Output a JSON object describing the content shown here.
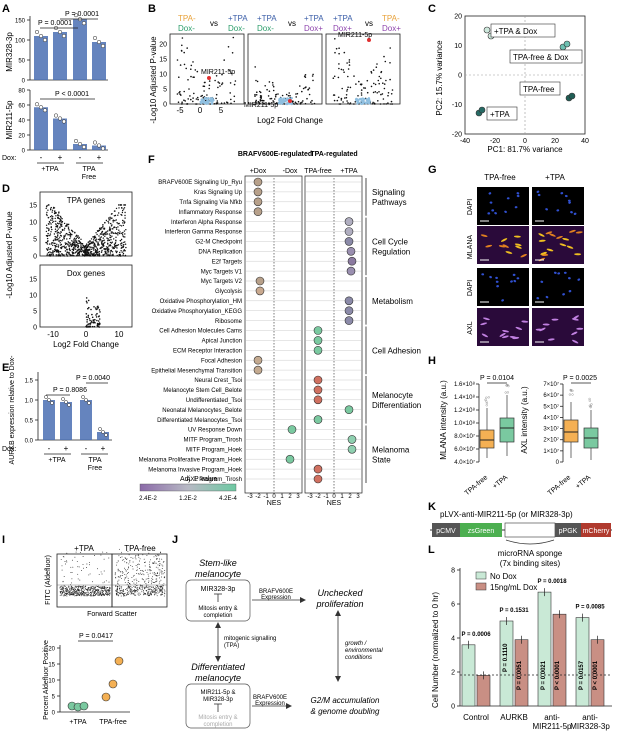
{
  "panels": {
    "A": {
      "label": "A",
      "top": {
        "ylabel": "MIR328-3p",
        "yticks": [
          "0",
          "50",
          "100",
          "150"
        ],
        "p1": "P = 0.0001",
        "p2": "P = 0.0001",
        "bars": [
          110,
          120,
          152,
          95
        ],
        "colors": [
          "#4a6fb3",
          "#4a6fb3",
          "#4a6fb3",
          "#4a6fb3"
        ]
      },
      "bottom": {
        "ylabel": "MIR211-5p",
        "yticks": [
          "0",
          "20",
          "40",
          "60",
          "80"
        ],
        "p1": "P < 0.0001",
        "bars": [
          57,
          42,
          8,
          6
        ],
        "colors": [
          "#4a6fb3",
          "#4a6fb3",
          "#4a6fb3",
          "#4a6fb3"
        ]
      },
      "dox_label": "Dox:",
      "dox_signs": [
        "-",
        "+",
        "-",
        "+"
      ],
      "groups": [
        "+TPA",
        "TPA",
        "Free"
      ]
    },
    "B": {
      "label": "B",
      "titles": [
        {
          "a": "TPA-",
          "a2": "Dox-",
          "vs": "vs",
          "b": "+TPA",
          "b2": "Dox-"
        },
        {
          "a": "+TPA",
          "a2": "Dox-",
          "vs": "vs",
          "b": "+TPA",
          "b2": "Dox+"
        },
        {
          "a": "+TPA",
          "a2": "Dox+",
          "vs": "vs",
          "b": "TPA-",
          "b2": "Dox+"
        }
      ],
      "ylabel": "-Log10 Adjusted P-value",
      "xlabel": "Log2 Fold Change",
      "yticks": [
        "0",
        "5",
        "10",
        "15",
        "20"
      ],
      "xticks": [
        "-5",
        "0",
        "5"
      ],
      "annot": [
        "MIR211-5p",
        "MIR211-5p",
        "MIR211-5p"
      ]
    },
    "C": {
      "label": "C",
      "xlabel": "PC1: 81.7% variance",
      "ylabel": "PC2: 15.7% variance",
      "xticks": [
        "-40",
        "-20",
        "0",
        "20",
        "40"
      ],
      "yticks": [
        "-20",
        "-10",
        "0",
        "10",
        "20"
      ],
      "groups": [
        "+TPA & Dox",
        "TPA-free & Dox",
        "TPA-free",
        "+TPA"
      ]
    },
    "D": {
      "label": "D",
      "top_title": "TPA genes",
      "bottom_title": "Dox genes",
      "ylabel": "-Log10 Adjusted P-value",
      "xlabel": "Log2 Fold Change",
      "xticks": [
        "-10",
        "0",
        "10"
      ],
      "yticks_top": [
        "0",
        "5",
        "10",
        "15"
      ],
      "yticks_bottom": [
        "0",
        "5",
        "10",
        "15"
      ]
    },
    "E": {
      "label": "E",
      "ylabel": "AURKB expression relative to Dox-",
      "yticks": [
        "0.0",
        "0.5",
        "1.0",
        "1.5"
      ],
      "p1": "P = 0.8086",
      "p2": "P = 0.0040",
      "bars": [
        1.0,
        0.95,
        1.0,
        0.2
      ],
      "dox_label": "Dox:",
      "dox_signs": [
        "-",
        "+",
        "-",
        "+"
      ],
      "groups": [
        "+TPA",
        "TPA",
        "Free"
      ]
    },
    "F": {
      "label": "F",
      "col1_title": "BRAFV600E-regulated",
      "col1_sub": [
        "+Dox",
        "-Dox"
      ],
      "col2_title": "TPA-regulated",
      "col2_sub": [
        "TPA-free",
        "+TPA"
      ],
      "pathways": [
        "BRAFV600E Signaling Up_Ryu",
        "Kras Signaling Up",
        "Tnfa Signaling Via Nfkb",
        "Inflammatory Response",
        "Interferon Alpha Response",
        "Interferon Gamma Response",
        "G2-M Checkpoint",
        "DNA Replication",
        "E2f Targets",
        "Myc Targets V1",
        "Myc Targets V2",
        "Glycolysis",
        "Oxidative Phosphorylation_HM",
        "Oxidative Phosphorylation_KEGG",
        "Ribosome",
        "Cell Adhesion Molecules Cams",
        "Apical Junction",
        "ECM Receptor Interaction",
        "Focal Adhesion",
        "Epithelial Mesenchymal Transition",
        "Neural Crest_Tsoi",
        "Melanocyte Stem Cell_Belote",
        "Undifferentiated_Tsoi",
        "Neonatal Melanocytes_Belote",
        "Differentiated Melanocytes_Tsoi",
        "UV Response Down",
        "MITF Program_Tirosh",
        "MITF Program_Hoek",
        "Melanoma Proliferative Program_Hoek",
        "Melanoma Invasive Program_Hoek",
        "AXL Program_Tirosh"
      ],
      "categories": [
        "Signaling Pathways",
        "Cell Cycle Regulation",
        "Metabolism",
        "Cell Adhesion",
        "Melanocyte Differentiation",
        "Melanoma State"
      ],
      "nes_ticks": [
        "-3",
        "-2",
        "-1",
        "0",
        "1",
        "2",
        "3"
      ],
      "nes_label": "NES",
      "legend_title": "Adj. P value",
      "legend_ticks": [
        "2.4E-2",
        "1.2E-2",
        "4.2E-4"
      ]
    },
    "G": {
      "label": "G",
      "cols": [
        "TPA-free",
        "+TPA"
      ],
      "rows": [
        "DAPI",
        "MLANA",
        "DAPI",
        "AXL"
      ]
    },
    "H": {
      "label": "H",
      "left_ylabel": "MLANA intensity (a.u.)",
      "right_ylabel": "AXL intensity (a.u.)",
      "left_p": "P = 0.0104",
      "right_p": "P = 0.0025",
      "left_yticks": [
        "4.0×10⁷",
        "6.0×10⁷",
        "8.0×10⁷",
        "1.0×10⁸",
        "1.2×10⁸",
        "1.4×10⁸",
        "1.6×10⁸"
      ],
      "right_yticks": [
        "0",
        "1×10⁷",
        "2×10⁷",
        "3×10⁷",
        "4×10⁷",
        "5×10⁷",
        "6×10⁷",
        "7×10⁷"
      ],
      "xlabels": [
        "TPA-free",
        "+TPA"
      ]
    },
    "I": {
      "label": "I",
      "cols": [
        "+TPA",
        "TPA-free"
      ],
      "ylabel_flow": "FITC (Aldefluor)",
      "xlabel_flow": "Forward Scatter",
      "p": "P = 0.0417",
      "ylabel_dot": "Percent Aldefluor Positive",
      "yticks_dot": [
        "0",
        "5",
        "10",
        "15",
        "20"
      ],
      "xlabels_dot": [
        "+TPA",
        "TPA-free"
      ]
    },
    "J": {
      "label": "J",
      "stem_title": "Stem-like melanocyte",
      "box1": [
        "MIR328-3p",
        "Mitosis entry & completion"
      ],
      "braf1": "BRAFV600E Expression",
      "unchecked": "Unchecked proliferation",
      "mitogenic": "mitogenic signalling (TPA)",
      "growth": "growth / environmental conditions",
      "diff_title": "Differentiated melanocyte",
      "box2": [
        "MIR211-5p & MIR328-3p",
        "Mitosis entry & completion"
      ],
      "braf2": "BRAFV600E Expression",
      "g2m": "G2/M accumulation & genome doubling"
    },
    "K": {
      "label": "K",
      "title": "pLVX-anti-MIR211-5p (or MIR328-3p)",
      "parts": [
        "pCMV",
        "zsGreen",
        "pPGK",
        "mCherry"
      ],
      "sponge": "microRNA sponge",
      "sponge2": "(7x binding sites)"
    },
    "L": {
      "label": "L",
      "ylabel": "Cell Number (normalized to 0 hr)",
      "yticks": [
        "0",
        "2",
        "4",
        "6",
        "8"
      ],
      "legend": [
        "No Dox",
        "15ng/mL Dox"
      ],
      "colors": {
        "nodox": "#c9e9d6",
        "dox": "#c98f84"
      },
      "groups": [
        "Control",
        "AURKB",
        "anti-MIR211-5p",
        "anti-MIR328-3p"
      ],
      "nodox": [
        3.6,
        5.0,
        6.7,
        5.2
      ],
      "dox": [
        1.8,
        3.9,
        5.4,
        3.9
      ],
      "p_top": [
        "P = 0.0006",
        "P = 0.1531",
        "P = 0.0018",
        "P = 0.0085"
      ],
      "p_vert": [
        "P = 0.1110",
        "P = 0.0051",
        "P = 0.0021",
        "P < 0.0001",
        "P = 0.0157",
        "P < 0.0001"
      ]
    }
  }
}
